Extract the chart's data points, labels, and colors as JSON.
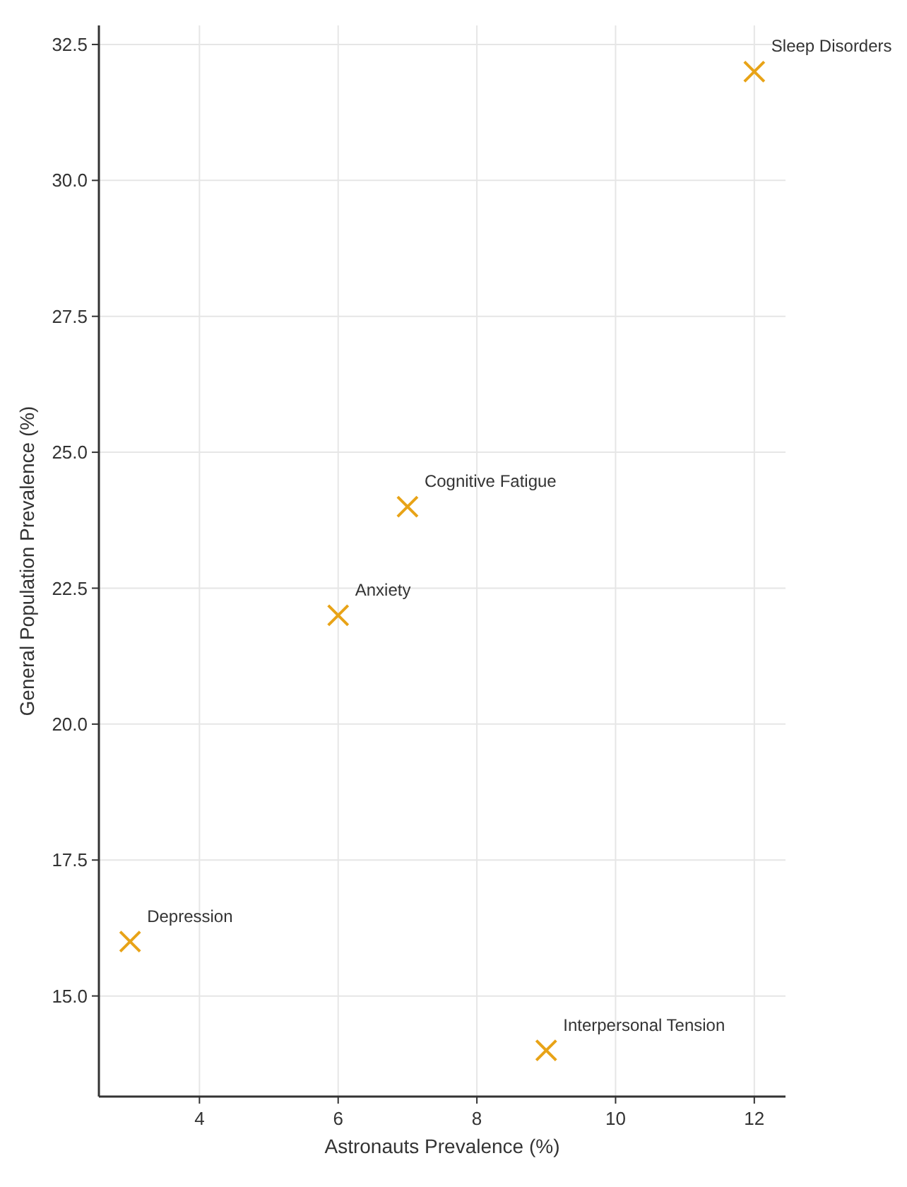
{
  "chart_data": {
    "type": "scatter",
    "xlabel": "Astronauts Prevalence (%)",
    "ylabel": "General Population Prevalence (%)",
    "x": [
      3,
      6,
      7,
      9,
      12
    ],
    "series": [
      {
        "color": "#e8a317",
        "values": [
          16,
          22,
          24,
          14,
          32
        ]
      }
    ],
    "xlim": [
      2.55,
      12.45
    ],
    "ylim": [
      13.15,
      32.85
    ],
    "xticks": [
      4,
      6,
      8,
      10,
      12
    ],
    "yticks": [
      {
        "value": 15,
        "label": "15.0"
      },
      {
        "value": 17.5,
        "label": "17.5"
      },
      {
        "value": 20,
        "label": "20.0"
      },
      {
        "value": 22.5,
        "label": "22.5"
      },
      {
        "value": 25,
        "label": "25.0"
      },
      {
        "value": 27.5,
        "label": "27.5"
      },
      {
        "value": 30,
        "label": "30.0"
      },
      {
        "value": 32.5,
        "label": "32.5"
      }
    ],
    "grid": true,
    "marker": "cross",
    "annotations": [
      {
        "text": "Depression",
        "x": 3,
        "y": 16
      },
      {
        "text": "Anxiety",
        "x": 6,
        "y": 22
      },
      {
        "text": "Cognitive Fatigue",
        "x": 7,
        "y": 24
      },
      {
        "text": "Interpersonal Tension",
        "x": 9,
        "y": 14
      },
      {
        "text": "Sleep Disorders",
        "x": 12,
        "y": 32
      }
    ]
  }
}
